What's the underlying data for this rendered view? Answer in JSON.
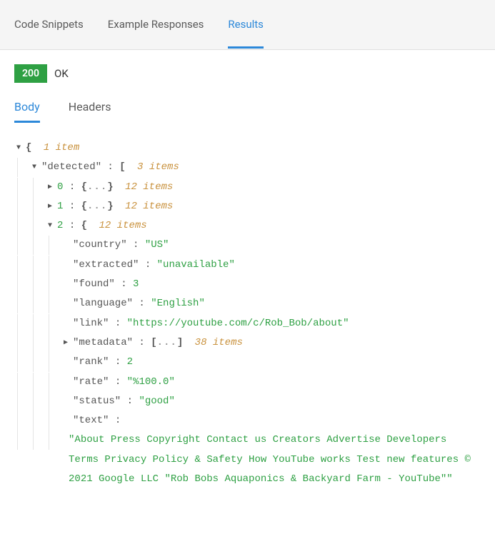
{
  "tabs": {
    "code_snippets": "Code Snippets",
    "example_responses": "Example Responses",
    "results": "Results"
  },
  "status": {
    "code": "200",
    "text": "OK"
  },
  "subtabs": {
    "body": "Body",
    "headers": "Headers"
  },
  "json": {
    "root_count": "1 item",
    "detected_key": "\"detected\"",
    "detected_count": "3 items",
    "item0_key": "0",
    "item0_count": "12 items",
    "item1_key": "1",
    "item1_count": "12 items",
    "item2_key": "2",
    "item2_count": "12 items",
    "country_key": "\"country\"",
    "country_val": "\"US\"",
    "extracted_key": "\"extracted\"",
    "extracted_val": "\"unavailable\"",
    "found_key": "\"found\"",
    "found_val": "3",
    "language_key": "\"language\"",
    "language_val": "\"English\"",
    "link_key": "\"link\"",
    "link_val": "\"https://youtube.com/c/Rob_Bob/about\"",
    "metadata_key": "\"metadata\"",
    "metadata_count": "38 items",
    "rank_key": "\"rank\"",
    "rank_val": "2",
    "rate_key": "\"rate\"",
    "rate_val": "\"%100.0\"",
    "status_key": "\"status\"",
    "status_val": "\"good\"",
    "text_key": "\"text\"",
    "text_val": "\"About Press Copyright Contact us Creators Advertise Developers Terms Privacy Policy & Safety How YouTube works Test new features © 2021 Google LLC \"Rob Bobs Aquaponics & Backyard Farm - YouTube\"\""
  },
  "glyphs": {
    "open_brace": "{",
    "close_brace": "}",
    "open_bracket": "[",
    "close_bracket": "]",
    "colon": " : ",
    "ellipsis": "..."
  }
}
